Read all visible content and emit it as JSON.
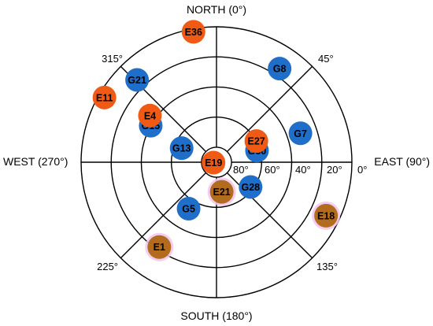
{
  "chart_data": {
    "type": "scatter",
    "projection": "polar-skyplot",
    "direction_labels": {
      "north": "NORTH (0°)",
      "east": "EAST (90°)",
      "south": "SOUTH (180°)",
      "west": "WEST (270°)"
    },
    "azimuth_labels": [
      {
        "azimuth": 45,
        "text": "45°"
      },
      {
        "azimuth": 135,
        "text": "135°"
      },
      {
        "azimuth": 225,
        "text": "225°"
      },
      {
        "azimuth": 315,
        "text": "315°"
      }
    ],
    "elevation_rings": [
      0,
      20,
      40,
      60,
      80
    ],
    "elevation_labels": [
      "80°",
      "60°",
      "40°",
      "20°",
      "0°"
    ],
    "azimuth_spokes": [
      0,
      45,
      90,
      135,
      180,
      225,
      270,
      315
    ],
    "colors": {
      "G": "#1f6ec9",
      "E": "#f05a14",
      "E_dim": "#b36b1e",
      "halo": "#f2c6ee"
    },
    "series": [
      {
        "system": "G",
        "points": [
          {
            "label": "G21",
            "azimuth": 316,
            "elevation": 14
          },
          {
            "label": "G15",
            "azimuth": 299,
            "elevation": 40
          },
          {
            "label": "G13",
            "azimuth": 292,
            "elevation": 65
          },
          {
            "label": "G8",
            "azimuth": 34,
            "elevation": 15
          },
          {
            "label": "G7",
            "azimuth": 71,
            "elevation": 31
          },
          {
            "label": "G30",
            "azimuth": 74,
            "elevation": 62
          },
          {
            "label": "G28",
            "azimuth": 126,
            "elevation": 62
          },
          {
            "label": "G5",
            "azimuth": 211,
            "elevation": 54
          }
        ]
      },
      {
        "system": "E",
        "points": [
          {
            "label": "E36",
            "azimuth": 350,
            "elevation": 2,
            "dim": false
          },
          {
            "label": "E11",
            "azimuth": 300,
            "elevation": 4,
            "dim": false
          },
          {
            "label": "E4",
            "azimuth": 305,
            "elevation": 36,
            "dim": false
          },
          {
            "label": "E27",
            "azimuth": 62,
            "elevation": 60,
            "dim": false
          },
          {
            "label": "E19",
            "azimuth": 262,
            "elevation": 88,
            "dim": false
          },
          {
            "label": "E21",
            "azimuth": 170,
            "elevation": 70,
            "dim": true
          },
          {
            "label": "E18",
            "azimuth": 116,
            "elevation": 9,
            "dim": true
          },
          {
            "label": "E1",
            "azimuth": 214,
            "elevation": 22,
            "dim": true
          }
        ]
      }
    ]
  }
}
